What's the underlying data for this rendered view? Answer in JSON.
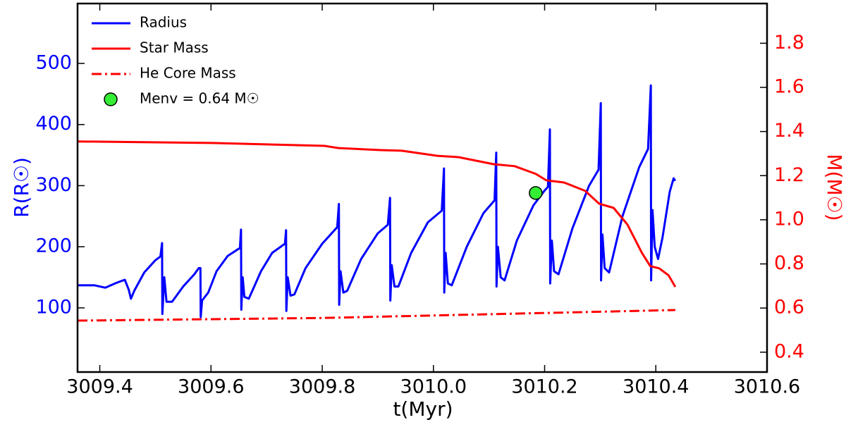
{
  "chart_data": {
    "type": "line",
    "xlabel": "t(Myr)",
    "ylabel": "R(R☉)",
    "y2label": "M(M☉)",
    "xlim": [
      3009.36,
      3010.6
    ],
    "xticks": [
      3009.4,
      3009.6,
      3009.8,
      {
        "value": 3010.0,
        "label": "3010.0"
      },
      3010.2,
      3010.4,
      3010.6
    ],
    "ylim": [
      -5,
      598
    ],
    "yticks": [
      100,
      200,
      300,
      400,
      500
    ],
    "y2lim": [
      0.31,
      1.98
    ],
    "y2ticks": [
      0.4,
      0.6,
      0.8,
      {
        "value": 1.0,
        "label": "1.0"
      },
      1.2,
      1.4,
      1.6,
      1.8
    ],
    "legend": "upper left",
    "series": [
      {
        "name": "Radius",
        "color": "#0000ff",
        "style": "solid",
        "axis": "y",
        "x": [
          3009.36,
          3009.39,
          3009.41,
          3009.43,
          3009.445,
          3009.452,
          3009.456,
          3009.462,
          3009.48,
          3009.5,
          3009.509,
          3009.512,
          3009.5125,
          3009.516,
          3009.52,
          3009.53,
          3009.55,
          3009.57,
          3009.578,
          3009.581,
          3009.5815,
          3009.584,
          3009.595,
          3009.61,
          3009.63,
          3009.652,
          3009.654,
          3009.6545,
          3009.657,
          3009.66,
          3009.668,
          3009.69,
          3009.71,
          3009.733,
          3009.735,
          3009.7355,
          3009.738,
          3009.743,
          3009.75,
          3009.77,
          3009.8,
          3009.827,
          3009.83,
          3009.8305,
          3009.833,
          3009.838,
          3009.845,
          3009.87,
          3009.9,
          3009.918,
          3009.922,
          3009.9225,
          3009.925,
          3009.93,
          3009.937,
          3009.96,
          3009.99,
          3010.015,
          3010.019,
          3010.0195,
          3010.022,
          3010.026,
          3010.033,
          3010.06,
          3010.09,
          3010.11,
          3010.113,
          3010.1135,
          3010.116,
          3010.121,
          3010.128,
          3010.15,
          3010.18,
          3010.2,
          3010.206,
          3010.2095,
          3010.21,
          3010.213,
          3010.217,
          3010.225,
          3010.25,
          3010.28,
          3010.297,
          3010.301,
          3010.3015,
          3010.304,
          3010.308,
          3010.316,
          3010.34,
          3010.37,
          3010.386,
          3010.391,
          3010.3915,
          3010.394,
          3010.398,
          3010.404,
          3010.412,
          3010.425,
          3010.432,
          3010.435
        ],
        "values": [
          137,
          137,
          133,
          141,
          146,
          130,
          115,
          128,
          158,
          178,
          184,
          206,
          90,
          150,
          110,
          110,
          135,
          155,
          165,
          165,
          85,
          112,
          125,
          160,
          185,
          198,
          228,
          97,
          150,
          118,
          115,
          160,
          190,
          205,
          227,
          95,
          150,
          120,
          122,
          165,
          205,
          232,
          270,
          105,
          160,
          125,
          128,
          180,
          222,
          236,
          280,
          112,
          170,
          135,
          135,
          190,
          240,
          259,
          328,
          125,
          190,
          140,
          137,
          200,
          255,
          276,
          354,
          135,
          200,
          150,
          145,
          210,
          268,
          292,
          298,
          392,
          140,
          210,
          160,
          155,
          230,
          300,
          326,
          435,
          145,
          220,
          165,
          158,
          250,
          330,
          360,
          464,
          145,
          260,
          200,
          180,
          215,
          290,
          312,
          308
        ]
      },
      {
        "name": "Star Mass",
        "color": "#ff0000",
        "style": "solid",
        "axis": "y2",
        "x": [
          3009.36,
          3009.601,
          3009.804,
          3009.829,
          3009.905,
          3009.943,
          3010.007,
          3010.045,
          3010.108,
          3010.146,
          3010.184,
          3010.203,
          3010.235,
          3010.273,
          3010.298,
          3010.324,
          3010.349,
          3010.375,
          3010.39,
          3010.406,
          3010.423,
          3010.435
        ],
        "values": [
          1.355,
          1.348,
          1.335,
          1.325,
          1.316,
          1.313,
          1.29,
          1.284,
          1.252,
          1.243,
          1.208,
          1.179,
          1.169,
          1.131,
          1.073,
          1.054,
          0.978,
          0.85,
          0.79,
          0.78,
          0.748,
          0.696
        ]
      },
      {
        "name": "He Core Mass",
        "color": "#ff0000",
        "style": "dashdot",
        "axis": "y2",
        "x": [
          3009.36,
          3009.8,
          3010.1,
          3010.435
        ],
        "values": [
          0.543,
          0.555,
          0.572,
          0.591
        ]
      },
      {
        "name": "Menv = 0.64 M☉",
        "color": "#33ee33",
        "style": "marker",
        "axis": "y",
        "x": [
          3010.184
        ],
        "values": [
          288
        ]
      }
    ]
  }
}
